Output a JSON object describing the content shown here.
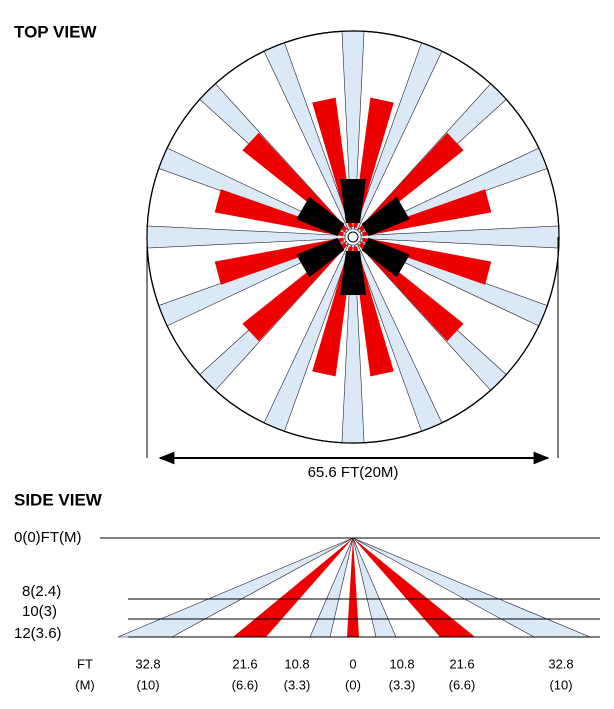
{
  "top_view": {
    "title": "TOP VIEW",
    "dimension": "65.6 FT(20M)"
  },
  "side_view": {
    "title": "SIDE VIEW",
    "levels": [
      "0(0)FT(M)",
      "8(2.4)",
      "10(3)",
      "12(3.6)"
    ],
    "distance_units": [
      "FT",
      "(M)"
    ],
    "distances": [
      [
        "32.8",
        "(10)"
      ],
      [
        "21.6",
        "(6.6)"
      ],
      [
        "10.8",
        "(3.3)"
      ],
      [
        "0",
        "(0)"
      ],
      [
        "10.8",
        "(3.3)"
      ],
      [
        "21.6",
        "(6.6)"
      ],
      [
        "32.8",
        "(10)"
      ]
    ]
  }
}
